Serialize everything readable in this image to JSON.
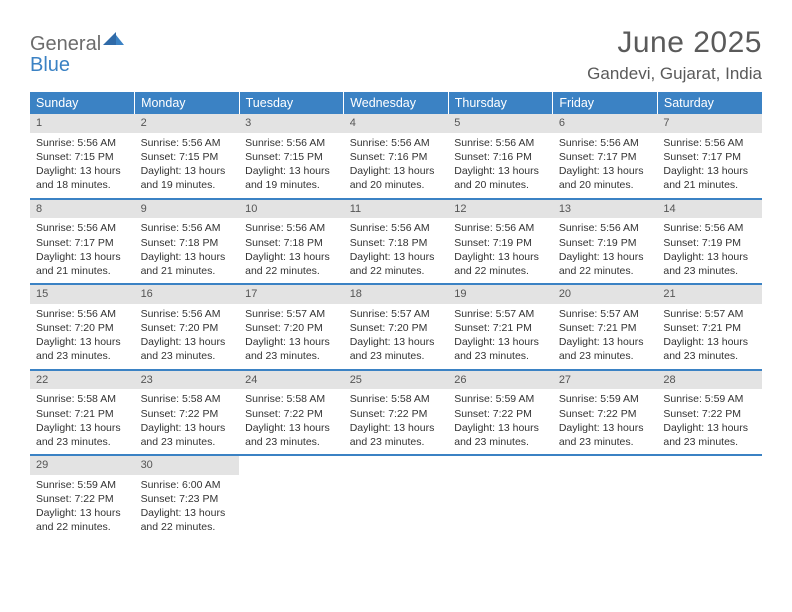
{
  "logo": {
    "word1": "General",
    "word2": "Blue"
  },
  "title": "June 2025",
  "location": "Gandevi, Gujarat, India",
  "style": {
    "header_bg": "#3b82c4",
    "header_fg": "#ffffff",
    "daynum_bg": "#e3e3e3",
    "row_border": "#3b82c4",
    "text_color": "#333333",
    "title_color": "#5a5a5a",
    "page_bg": "#ffffff",
    "title_fontsize": 30,
    "location_fontsize": 17,
    "header_fontsize": 12.5,
    "cell_fontsize": 10.5
  },
  "weekdays": [
    "Sunday",
    "Monday",
    "Tuesday",
    "Wednesday",
    "Thursday",
    "Friday",
    "Saturday"
  ],
  "weeks": [
    [
      {
        "n": "1",
        "sr": "5:56 AM",
        "ss": "7:15 PM",
        "dl": "13 hours and 18 minutes."
      },
      {
        "n": "2",
        "sr": "5:56 AM",
        "ss": "7:15 PM",
        "dl": "13 hours and 19 minutes."
      },
      {
        "n": "3",
        "sr": "5:56 AM",
        "ss": "7:15 PM",
        "dl": "13 hours and 19 minutes."
      },
      {
        "n": "4",
        "sr": "5:56 AM",
        "ss": "7:16 PM",
        "dl": "13 hours and 20 minutes."
      },
      {
        "n": "5",
        "sr": "5:56 AM",
        "ss": "7:16 PM",
        "dl": "13 hours and 20 minutes."
      },
      {
        "n": "6",
        "sr": "5:56 AM",
        "ss": "7:17 PM",
        "dl": "13 hours and 20 minutes."
      },
      {
        "n": "7",
        "sr": "5:56 AM",
        "ss": "7:17 PM",
        "dl": "13 hours and 21 minutes."
      }
    ],
    [
      {
        "n": "8",
        "sr": "5:56 AM",
        "ss": "7:17 PM",
        "dl": "13 hours and 21 minutes."
      },
      {
        "n": "9",
        "sr": "5:56 AM",
        "ss": "7:18 PM",
        "dl": "13 hours and 21 minutes."
      },
      {
        "n": "10",
        "sr": "5:56 AM",
        "ss": "7:18 PM",
        "dl": "13 hours and 22 minutes."
      },
      {
        "n": "11",
        "sr": "5:56 AM",
        "ss": "7:18 PM",
        "dl": "13 hours and 22 minutes."
      },
      {
        "n": "12",
        "sr": "5:56 AM",
        "ss": "7:19 PM",
        "dl": "13 hours and 22 minutes."
      },
      {
        "n": "13",
        "sr": "5:56 AM",
        "ss": "7:19 PM",
        "dl": "13 hours and 22 minutes."
      },
      {
        "n": "14",
        "sr": "5:56 AM",
        "ss": "7:19 PM",
        "dl": "13 hours and 23 minutes."
      }
    ],
    [
      {
        "n": "15",
        "sr": "5:56 AM",
        "ss": "7:20 PM",
        "dl": "13 hours and 23 minutes."
      },
      {
        "n": "16",
        "sr": "5:56 AM",
        "ss": "7:20 PM",
        "dl": "13 hours and 23 minutes."
      },
      {
        "n": "17",
        "sr": "5:57 AM",
        "ss": "7:20 PM",
        "dl": "13 hours and 23 minutes."
      },
      {
        "n": "18",
        "sr": "5:57 AM",
        "ss": "7:20 PM",
        "dl": "13 hours and 23 minutes."
      },
      {
        "n": "19",
        "sr": "5:57 AM",
        "ss": "7:21 PM",
        "dl": "13 hours and 23 minutes."
      },
      {
        "n": "20",
        "sr": "5:57 AM",
        "ss": "7:21 PM",
        "dl": "13 hours and 23 minutes."
      },
      {
        "n": "21",
        "sr": "5:57 AM",
        "ss": "7:21 PM",
        "dl": "13 hours and 23 minutes."
      }
    ],
    [
      {
        "n": "22",
        "sr": "5:58 AM",
        "ss": "7:21 PM",
        "dl": "13 hours and 23 minutes."
      },
      {
        "n": "23",
        "sr": "5:58 AM",
        "ss": "7:22 PM",
        "dl": "13 hours and 23 minutes."
      },
      {
        "n": "24",
        "sr": "5:58 AM",
        "ss": "7:22 PM",
        "dl": "13 hours and 23 minutes."
      },
      {
        "n": "25",
        "sr": "5:58 AM",
        "ss": "7:22 PM",
        "dl": "13 hours and 23 minutes."
      },
      {
        "n": "26",
        "sr": "5:59 AM",
        "ss": "7:22 PM",
        "dl": "13 hours and 23 minutes."
      },
      {
        "n": "27",
        "sr": "5:59 AM",
        "ss": "7:22 PM",
        "dl": "13 hours and 23 minutes."
      },
      {
        "n": "28",
        "sr": "5:59 AM",
        "ss": "7:22 PM",
        "dl": "13 hours and 23 minutes."
      }
    ],
    [
      {
        "n": "29",
        "sr": "5:59 AM",
        "ss": "7:22 PM",
        "dl": "13 hours and 22 minutes."
      },
      {
        "n": "30",
        "sr": "6:00 AM",
        "ss": "7:23 PM",
        "dl": "13 hours and 22 minutes."
      },
      null,
      null,
      null,
      null,
      null
    ]
  ],
  "labels": {
    "sunrise": "Sunrise:",
    "sunset": "Sunset:",
    "daylight": "Daylight:"
  }
}
